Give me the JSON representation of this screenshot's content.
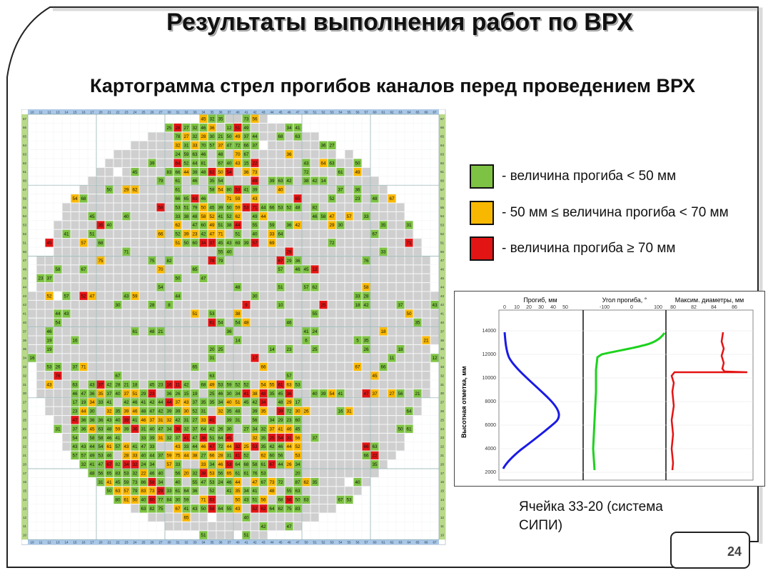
{
  "slide": {
    "title": "Результаты выполнения работ по ВРХ",
    "subtitle": "Картограмма стрел прогибов каналов перед проведением ВРХ",
    "page_number": "24"
  },
  "legend": {
    "items": [
      {
        "color": "#7dc242",
        "label": "- величина прогиба < 50 мм"
      },
      {
        "color": "#f9b800",
        "label": "-  50 мм ≤ величина прогиба < 70 мм"
      },
      {
        "color": "#e31414",
        "label": "- величина прогиба ≥ 70 мм"
      }
    ]
  },
  "cartogram": {
    "column_labels": [
      "10",
      "11",
      "12",
      "13",
      "14",
      "15",
      "16",
      "17",
      "20",
      "21",
      "22",
      "23",
      "24",
      "25",
      "26",
      "27",
      "30",
      "31",
      "32",
      "33",
      "34",
      "35",
      "36",
      "37",
      "40",
      "41",
      "42",
      "43",
      "44",
      "45",
      "46",
      "47",
      "50",
      "51",
      "52",
      "53",
      "54",
      "55",
      "56",
      "57",
      "60",
      "61",
      "62",
      "63",
      "64",
      "65",
      "66",
      "67"
    ],
    "row_labels": [
      "67",
      "66",
      "65",
      "64",
      "63",
      "62",
      "61",
      "60",
      "57",
      "56",
      "55",
      "54",
      "53",
      "52",
      "51",
      "50",
      "47",
      "46",
      "45",
      "44",
      "43",
      "42",
      "41",
      "40",
      "37",
      "36",
      "35",
      "34",
      "33",
      "32",
      "31",
      "30",
      "27",
      "26",
      "25",
      "24",
      "23",
      "22",
      "21",
      "20",
      "17",
      "16",
      "15",
      "14",
      "13",
      "12",
      "11",
      "10"
    ],
    "colors": {
      "green": "#7dc242",
      "yellow": "#f9b800",
      "red": "#e31414",
      "gray": "#cfcfcf",
      "empty": "#ffffff",
      "header": "#a9c7e8"
    },
    "sample_values": [
      "45",
      "32",
      "35",
      "73",
      "56",
      "25",
      "28",
      "27",
      "32",
      "46",
      "36",
      "12",
      "51",
      "49",
      "34",
      "41",
      "78",
      "27",
      "32",
      "28",
      "30",
      "21",
      "50",
      "49",
      "37",
      "44",
      "68",
      "63",
      "32",
      "31",
      "33",
      "70",
      "57",
      "37",
      "47",
      "72",
      "66",
      "37",
      "36",
      "27",
      "24",
      "59",
      "63",
      "46",
      "48",
      "70",
      "67",
      "36",
      "39",
      "64",
      "52",
      "44",
      "81",
      "67",
      "40",
      "43",
      "15",
      "22",
      "43",
      "64",
      "63",
      "50",
      "45",
      "83",
      "66",
      "44",
      "39",
      "48",
      "62",
      "50",
      "54",
      "36",
      "73",
      "72",
      "61",
      "49",
      "79",
      "61",
      "46",
      "35",
      "54",
      "49",
      "39",
      "63",
      "42",
      "38",
      "42",
      "14",
      "50",
      "29",
      "62",
      "61",
      "58",
      "54",
      "80",
      "53",
      "41",
      "39",
      "40",
      "37",
      "36",
      "54",
      "68",
      "66",
      "65",
      "63",
      "46",
      "71",
      "59",
      "43",
      "65",
      "52",
      "23",
      "48",
      "67",
      "58",
      "53",
      "51",
      "79",
      "50",
      "45",
      "39",
      "50",
      "59",
      "53",
      "71",
      "44",
      "66",
      "53",
      "52",
      "48",
      "82",
      "45",
      "40",
      "33",
      "38",
      "48",
      "58",
      "52",
      "41",
      "52",
      "62",
      "49",
      "44",
      "46",
      "58",
      "47",
      "57",
      "33",
      "35",
      "40",
      "62",
      "47",
      "60",
      "49",
      "51",
      "38",
      "44",
      "55",
      "59",
      "36",
      "42",
      "29",
      "30",
      "35",
      "31",
      "41",
      "51",
      "66",
      "52",
      "39",
      "23",
      "42",
      "47",
      "71",
      "51",
      "40",
      "33",
      "64",
      "67",
      "45",
      "57",
      "68",
      "51",
      "50",
      "60",
      "34",
      "37",
      "45",
      "43",
      "69",
      "39",
      "57",
      "69",
      "72",
      "71",
      "71",
      "55",
      "40",
      "28",
      "33",
      "75",
      "75",
      "82",
      "78",
      "79",
      "67",
      "29",
      "36",
      "76",
      "58",
      "67",
      "70",
      "65",
      "57",
      "46",
      "45",
      "12",
      "23",
      "37",
      "50",
      "47",
      "54",
      "48",
      "51",
      "57",
      "62",
      "58",
      "52",
      "57",
      "52",
      "47",
      "43",
      "59",
      "44",
      "30",
      "33",
      "28",
      "30",
      "28",
      "8",
      "9",
      "10",
      "25",
      "18",
      "42",
      "37",
      "43",
      "44",
      "43",
      "51",
      "53",
      "38",
      "55",
      "50",
      "54",
      "61",
      "54",
      "54",
      "48",
      "46",
      "35",
      "46",
      "61",
      "48",
      "21",
      "36",
      "41",
      "24",
      "18",
      "19",
      "16",
      "14",
      "6",
      "5",
      "35",
      "21",
      "19",
      "20",
      "25",
      "14",
      "23",
      "25",
      "26",
      "18",
      "16",
      "31",
      "17",
      "11",
      "12",
      "53",
      "26",
      "37",
      "71",
      "65",
      "66",
      "67",
      "66",
      "76",
      "67",
      "63",
      "57",
      "45",
      "43",
      "63",
      "43",
      "37",
      "42",
      "28",
      "21",
      "18",
      "45",
      "23",
      "16",
      "11",
      "42",
      "68",
      "49",
      "53",
      "59",
      "52",
      "52",
      "54",
      "55",
      "61",
      "63",
      "53",
      "46",
      "47",
      "36",
      "35",
      "37",
      "40",
      "37",
      "51",
      "29",
      "23",
      "36",
      "26",
      "15",
      "19",
      "25",
      "46",
      "30",
      "34",
      "41",
      "38",
      "48",
      "35",
      "45",
      "36",
      "40",
      "39",
      "54",
      "41",
      "47",
      "37",
      "27",
      "56",
      "21",
      "17",
      "19",
      "34",
      "33",
      "41",
      "42",
      "46",
      "41",
      "42",
      "44",
      "44",
      "37",
      "43",
      "37",
      "35",
      "35",
      "34",
      "40",
      "51",
      "45",
      "42",
      "34",
      "48",
      "29",
      "17",
      "23",
      "44",
      "30",
      "32",
      "35",
      "39",
      "46",
      "48",
      "47",
      "42",
      "39",
      "39",
      "30",
      "52",
      "31",
      "32",
      "35",
      "48",
      "39",
      "35",
      "39",
      "72",
      "30",
      "26",
      "16",
      "31",
      "64",
      "47",
      "36",
      "36",
      "36",
      "43",
      "40",
      "39",
      "41",
      "46",
      "37",
      "31",
      "32",
      "42",
      "31",
      "27",
      "33",
      "41",
      "39",
      "31",
      "56",
      "34",
      "29",
      "23",
      "60",
      "31",
      "37",
      "36",
      "45",
      "63",
      "48",
      "59",
      "39",
      "36",
      "31",
      "40",
      "47",
      "34",
      "38",
      "32",
      "37",
      "64",
      "42",
      "26",
      "30",
      "27",
      "34",
      "32",
      "37",
      "41",
      "46",
      "45",
      "50",
      "61",
      "54",
      "58",
      "58",
      "46",
      "41",
      "33",
      "39",
      "31",
      "32",
      "37",
      "41",
      "47",
      "38",
      "51",
      "64",
      "45",
      "32",
      "35",
      "25",
      "54",
      "31",
      "56",
      "37",
      "43",
      "43",
      "44",
      "54",
      "61",
      "57",
      "43",
      "41",
      "47",
      "33",
      "43",
      "33",
      "44",
      "46",
      "47",
      "72",
      "44",
      "32",
      "25",
      "53",
      "35",
      "42",
      "46",
      "44",
      "52",
      "66",
      "63",
      "57",
      "57",
      "49",
      "53",
      "46",
      "28",
      "33",
      "40",
      "44",
      "37",
      "59",
      "75",
      "44",
      "38",
      "27",
      "66",
      "28",
      "31",
      "41",
      "52",
      "62",
      "60",
      "56",
      "53",
      "66",
      "22",
      "32",
      "41",
      "47",
      "67",
      "82",
      "34",
      "32",
      "24",
      "34",
      "57",
      "33",
      "33",
      "34",
      "46",
      "53",
      "64",
      "68",
      "58",
      "61",
      "67",
      "44",
      "26",
      "34",
      "35",
      "48",
      "56",
      "65",
      "83",
      "53",
      "32",
      "22",
      "46",
      "40",
      "56",
      "20",
      "32",
      "38",
      "53",
      "56",
      "65",
      "61",
      "61",
      "76",
      "53",
      "20",
      "31",
      "41",
      "45",
      "59",
      "73",
      "86",
      "58",
      "34",
      "40",
      "55",
      "47",
      "53",
      "24",
      "46",
      "44",
      "47",
      "67",
      "73",
      "72",
      "87",
      "62",
      "35",
      "40",
      "50",
      "63",
      "57",
      "79",
      "83",
      "73",
      "29",
      "33",
      "61",
      "64",
      "36",
      "52",
      "41",
      "35",
      "34",
      "41",
      "48",
      "55",
      "63",
      "80",
      "61",
      "50",
      "40",
      "60",
      "77",
      "84",
      "30",
      "59",
      "71",
      "63",
      "50",
      "43",
      "51",
      "56",
      "68",
      "56",
      "50",
      "63",
      "67",
      "53",
      "63",
      "82",
      "75",
      "67",
      "41",
      "43",
      "50",
      "58",
      "64",
      "55",
      "43",
      "52",
      "62",
      "64",
      "62",
      "75",
      "83",
      "65",
      "40",
      "42",
      "47",
      "51",
      "51",
      "44",
      "41",
      "48",
      "55",
      "59",
      "59",
      "69",
      "80",
      "62",
      "26",
      "30",
      "55",
      "42",
      "40",
      "44",
      "39",
      "51",
      "53",
      "68",
      "71",
      "75",
      "59",
      "24",
      "39",
      "39",
      "31",
      "48",
      "56",
      "57",
      "70",
      "55",
      "26",
      "28",
      "45",
      "61",
      "57",
      "67",
      "53",
      "24",
      "22",
      "80",
      "60",
      "51",
      "25"
    ]
  },
  "plot_panel": {
    "panels": [
      {
        "title": "Прогиб, мм",
        "ticks": [
          "0",
          "10",
          "20",
          "30",
          "40",
          "50"
        ]
      },
      {
        "title": "Угол прогиба, °",
        "ticks": [
          "-100",
          "0",
          "100"
        ]
      },
      {
        "title": "Максим. диаметры, мм",
        "ticks": [
          "80",
          "82",
          "84",
          "86"
        ]
      }
    ],
    "y_axis_label": "Высотная отметка, мм",
    "y_ticks": [
      "14000",
      "12000",
      "10000",
      "8000",
      "6000",
      "4000",
      "2000"
    ],
    "caption_line1": "Ячейка 33-20 (система",
    "caption_line2": "СИПИ)"
  }
}
